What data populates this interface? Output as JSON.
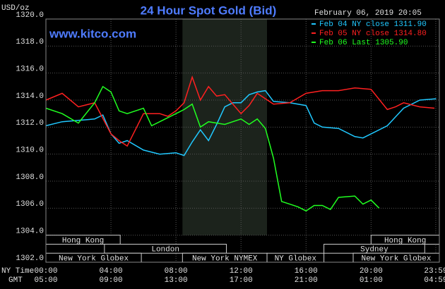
{
  "chart_data": {
    "type": "line",
    "title": "24 Hour Spot Gold (Bid)",
    "unit_label": "USD/oz",
    "website": "www.kitco.com",
    "timestamp": "February 06, 2019 20:05",
    "x_row_labels": [
      "NY Time",
      "GMT"
    ],
    "xlim": [
      0,
      24.2
    ],
    "ylim": [
      1302,
      1320
    ],
    "yticks": [
      {
        "value": 1302,
        "label": "1302.0"
      },
      {
        "value": 1304,
        "label": "1304.0"
      },
      {
        "value": 1306,
        "label": "1306.0"
      },
      {
        "value": 1308,
        "label": "1308.0"
      },
      {
        "value": 1310,
        "label": "1310.0"
      },
      {
        "value": 1312,
        "label": "1312.0"
      },
      {
        "value": 1314,
        "label": "1314.0"
      },
      {
        "value": 1316,
        "label": "1316.0"
      },
      {
        "value": 1318,
        "label": "1318.0"
      },
      {
        "value": 1320,
        "label": "1320.0"
      }
    ],
    "xticks": [
      {
        "value": 0,
        "label": "00:00"
      },
      {
        "value": 4,
        "label": "04:00"
      },
      {
        "value": 8,
        "label": "08:00"
      },
      {
        "value": 12,
        "label": "12:00"
      },
      {
        "value": 16,
        "label": "16:00"
      },
      {
        "value": 20,
        "label": "20:00"
      },
      {
        "value": 23.98,
        "label": "23:59"
      }
    ],
    "gmt_labels": [
      "05:00",
      "09:00",
      "13:00",
      "17:00",
      "21:00",
      "01:00",
      "04:59"
    ],
    "grid": true,
    "highlight": {
      "start": 8.4,
      "end": 13.6
    },
    "sessions": [
      {
        "name": "Hong Kong",
        "row": 0,
        "start": 0,
        "end": 4.57
      },
      {
        "name": "Hong Kong",
        "row": 0,
        "start": 20,
        "end": 24.2
      },
      {
        "name": "London",
        "row": 1,
        "start": 3.6,
        "end": 11.1
      },
      {
        "name": "Sydney",
        "row": 1,
        "start": 17.1,
        "end": 23.3
      },
      {
        "name": "New York Globex",
        "row": 2,
        "start": 0,
        "end": 5.87
      },
      {
        "name": "New York NYMEX",
        "row": 2,
        "start": 8.4,
        "end": 13.6
      },
      {
        "name": "NY Globex",
        "row": 2,
        "start": 13.6,
        "end": 17.1
      },
      {
        "name": "New York Globex",
        "row": 2,
        "start": 18.9,
        "end": 24.2
      }
    ],
    "series": [
      {
        "name": "Feb 04 NY close 1311.90",
        "color": "#20c8ff",
        "x": [
          0,
          1,
          2,
          3,
          3.5,
          4,
          4.5,
          5,
          6,
          7,
          8,
          8.5,
          9,
          9.5,
          10,
          10.5,
          11,
          11.5,
          12,
          12.5,
          13,
          13.5,
          14,
          15,
          16,
          16.5,
          17,
          18,
          19,
          19.5,
          20,
          21,
          22,
          23,
          24
        ],
        "values": [
          1312.1,
          1312.4,
          1312.5,
          1312.6,
          1312.9,
          1311.5,
          1310.8,
          1311.0,
          1310.3,
          1310.0,
          1310.1,
          1309.9,
          1310.9,
          1311.8,
          1311.0,
          1312.2,
          1313.5,
          1313.8,
          1313.8,
          1314.4,
          1314.6,
          1314.7,
          1313.9,
          1313.8,
          1313.6,
          1312.3,
          1312.0,
          1311.9,
          1311.3,
          1311.2,
          1311.5,
          1312.1,
          1313.4,
          1314.0,
          1314.1
        ]
      },
      {
        "name": "Feb 05 NY close 1314.80",
        "color": "#ff2020",
        "x": [
          0,
          1,
          2,
          3,
          4,
          4.5,
          5,
          6,
          7,
          7.5,
          8,
          8.5,
          9,
          9.5,
          10,
          10.5,
          11,
          12,
          12.5,
          13,
          14,
          15,
          16,
          17,
          18,
          19,
          20,
          21,
          21.5,
          22,
          23,
          23.9
        ],
        "values": [
          1314.0,
          1314.5,
          1313.5,
          1313.8,
          1311.5,
          1311.0,
          1310.6,
          1313.0,
          1313.0,
          1312.8,
          1313.2,
          1313.8,
          1315.7,
          1314.0,
          1315.0,
          1314.3,
          1314.4,
          1313.0,
          1313.6,
          1314.5,
          1313.7,
          1313.8,
          1314.5,
          1314.7,
          1314.7,
          1314.9,
          1314.8,
          1313.3,
          1313.5,
          1313.8,
          1313.5,
          1313.4
        ]
      },
      {
        "name": "Feb 06 Last 1305.90",
        "color": "#20ff20",
        "x": [
          0,
          1,
          2,
          3,
          3.5,
          4,
          4.5,
          5,
          6,
          6.5,
          7,
          8,
          8.5,
          9,
          9.5,
          10,
          11,
          12,
          12.5,
          13,
          13.5,
          14,
          14.5,
          15,
          15.5,
          16,
          16.5,
          17,
          17.5,
          18,
          19,
          19.5,
          20,
          20.5
        ],
        "values": [
          1313.4,
          1313.0,
          1312.3,
          1313.8,
          1315.0,
          1314.6,
          1313.2,
          1313.0,
          1313.4,
          1312.1,
          1312.4,
          1313.0,
          1313.3,
          1313.7,
          1312.0,
          1312.4,
          1312.2,
          1312.6,
          1312.2,
          1312.6,
          1311.9,
          1309.7,
          1306.5,
          1306.3,
          1306.1,
          1305.8,
          1306.2,
          1306.2,
          1305.9,
          1306.8,
          1306.9,
          1306.3,
          1306.6,
          1306.0
        ]
      }
    ]
  }
}
